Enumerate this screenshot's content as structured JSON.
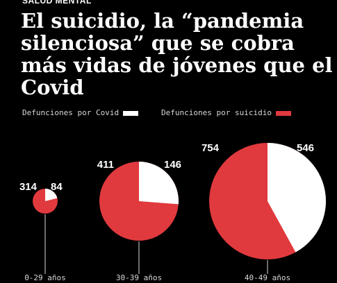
{
  "header": {
    "kicker": "SALUD MENTAL",
    "title": "El suicidio, la “pandemia silenciosa” que se cobra más vidas de jóvenes que el Covid"
  },
  "legend": {
    "covid_label": "Defunciones por Covid",
    "suicide_label": "Defunciones por suicidio"
  },
  "colors": {
    "covid": "#ffffff",
    "suicide": "#e03a3e",
    "background": "#000000"
  },
  "chart_data": {
    "type": "pie",
    "title": "El suicidio, la “pandemia silenciosa” que se cobra más vidas de jóvenes que el Covid",
    "series_names": [
      "Defunciones por Covid",
      "Defunciones por suicidio"
    ],
    "legend_placement": "top",
    "pies": [
      {
        "category": "0-29 años",
        "covid": 84,
        "suicide": 314
      },
      {
        "category": "30-39 años",
        "covid": 146,
        "suicide": 411
      },
      {
        "category": "40-49 años",
        "covid": 546,
        "suicide": 754
      }
    ]
  }
}
